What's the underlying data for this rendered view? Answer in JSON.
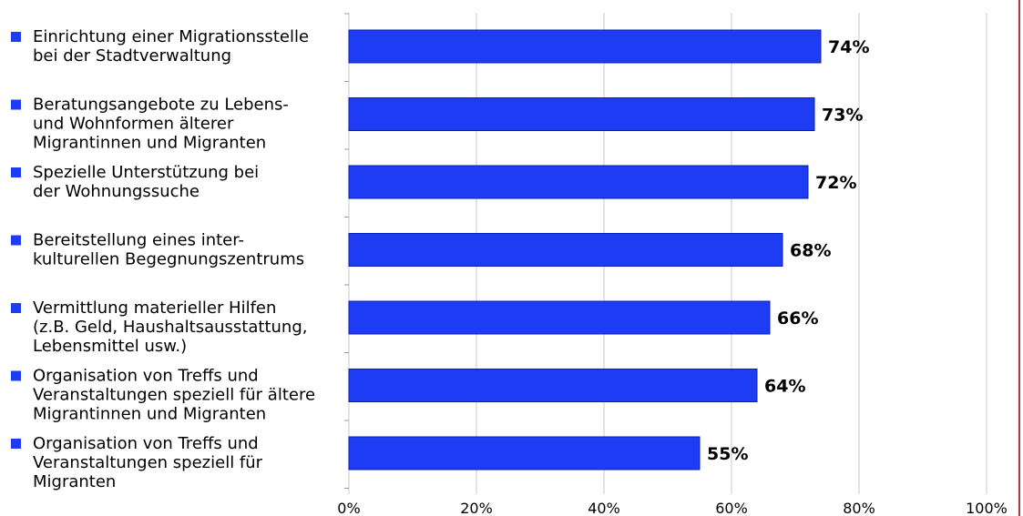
{
  "chart_data": {
    "type": "bar",
    "orientation": "horizontal",
    "categories": [
      [
        "Einrichtung einer Migrationsstelle",
        "bei der Stadtverwaltung"
      ],
      [
        "Beratungsangebote zu Lebens-",
        "und Wohnformen älterer",
        "Migrantinnen und Migranten"
      ],
      [
        "Spezielle Unterstützung bei",
        "der Wohnungssuche"
      ],
      [
        "Bereitstellung eines inter-",
        "kulturellen Begegnungszentrums"
      ],
      [
        "Vermittlung materieller Hilfen",
        "(z.B. Geld, Haushaltsausstattung,",
        "Lebensmittel usw.)"
      ],
      [
        "Organisation von Treffs und",
        "Veranstaltungen speziell für ältere",
        "Migrantinnen und Migranten"
      ],
      [
        "Organisation von Treffs und",
        "Veranstaltungen speziell für",
        "Migranten"
      ]
    ],
    "values": [
      74,
      73,
      72,
      68,
      66,
      64,
      55
    ],
    "value_labels": [
      "74%",
      "73%",
      "72%",
      "68%",
      "66%",
      "64%",
      "55%"
    ],
    "xlim": [
      0,
      100
    ],
    "x_ticks": [
      0,
      20,
      40,
      60,
      80,
      100
    ],
    "x_tick_labels": [
      "0%",
      "20%",
      "40%",
      "60%",
      "80%",
      "100%"
    ],
    "grid": true,
    "colors": {
      "bar": "#1f3cf5",
      "bar_edge": "#0b1fb0",
      "marker": "#1f3cf5",
      "grid": "#c8c8c8",
      "right_border": "#b23a3a"
    }
  }
}
